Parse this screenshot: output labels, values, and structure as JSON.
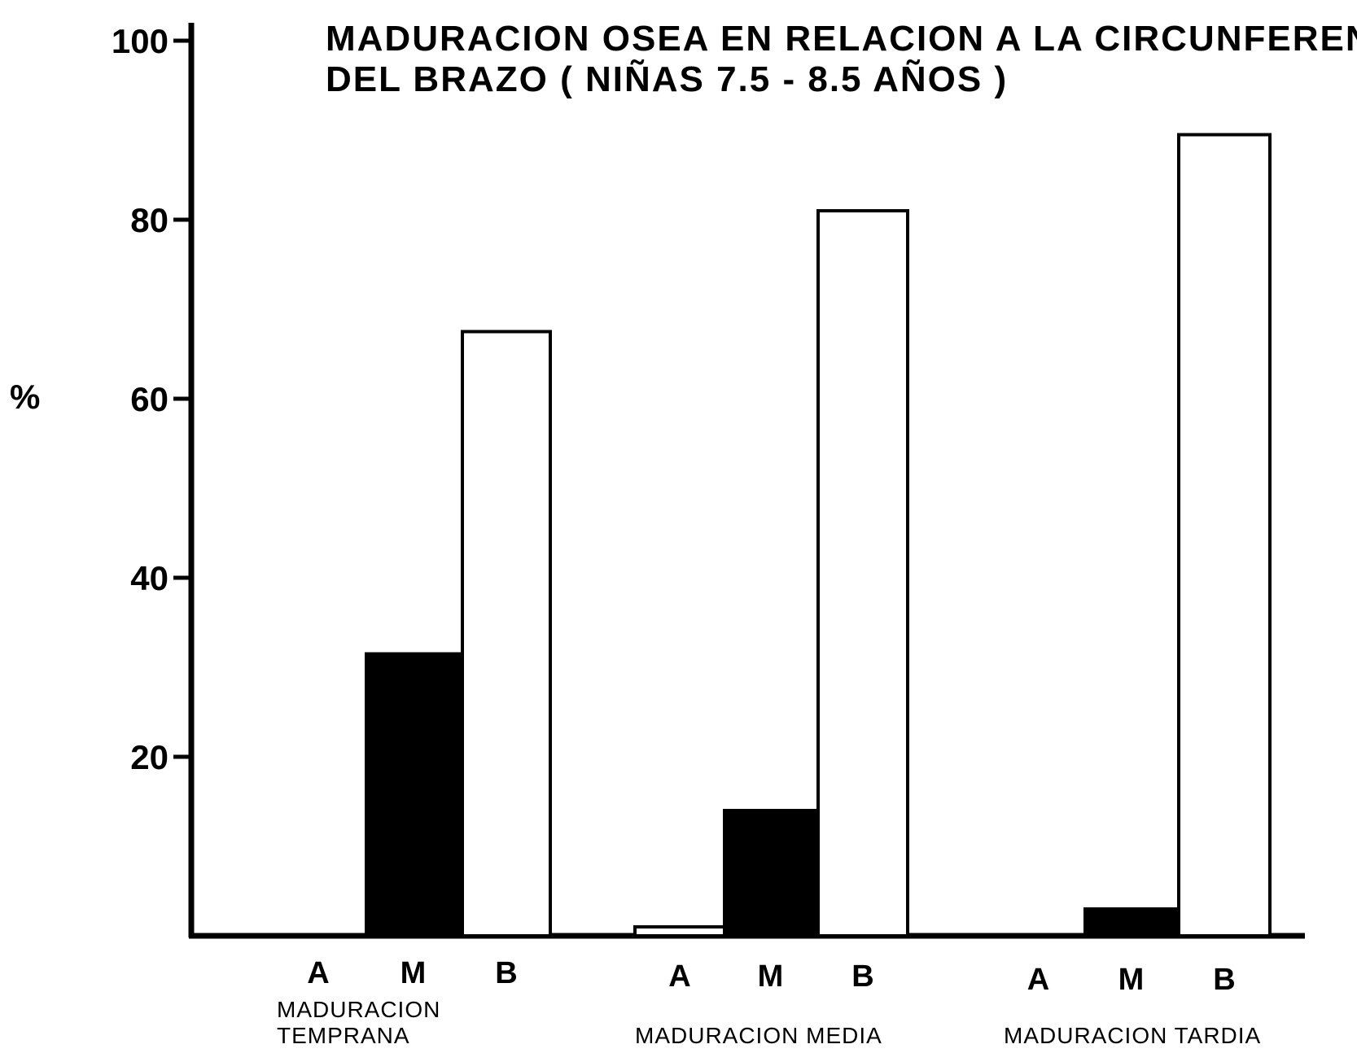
{
  "chart_data": {
    "type": "bar",
    "title_lines": [
      "MADURACION OSEA EN RELACION A LA CIRCUNFERENCIA",
      "DEL BRAZO ( NIÑAS 7.5 - 8.5 AÑOS )"
    ],
    "ylabel": "%",
    "ylim": [
      0,
      100
    ],
    "yticks": [
      20,
      40,
      60,
      80,
      100
    ],
    "yticks_labels": [
      "20",
      "40",
      "60",
      "80",
      "100"
    ],
    "grid": false,
    "groups": [
      {
        "label_lines": [
          "MADURACION",
          "TEMPRANA"
        ],
        "bars": [
          {
            "category": "A",
            "value": 0,
            "fill": "white"
          },
          {
            "category": "M",
            "value": 31.5,
            "fill": "black"
          },
          {
            "category": "B",
            "value": 67.5,
            "fill": "white"
          }
        ]
      },
      {
        "label_lines": [
          "MADURACION MEDIA"
        ],
        "bars": [
          {
            "category": "A",
            "value": 1,
            "fill": "white"
          },
          {
            "category": "M",
            "value": 14,
            "fill": "black"
          },
          {
            "category": "B",
            "value": 81,
            "fill": "white"
          }
        ]
      },
      {
        "label_lines": [
          "MADURACION TARDIA"
        ],
        "bars": [
          {
            "category": "A",
            "value": 0,
            "fill": "white"
          },
          {
            "category": "M",
            "value": 3,
            "fill": "black"
          },
          {
            "category": "B",
            "value": 89.5,
            "fill": "white"
          }
        ]
      }
    ]
  },
  "colors": {
    "ink": "#000000",
    "paper": "#ffffff"
  }
}
